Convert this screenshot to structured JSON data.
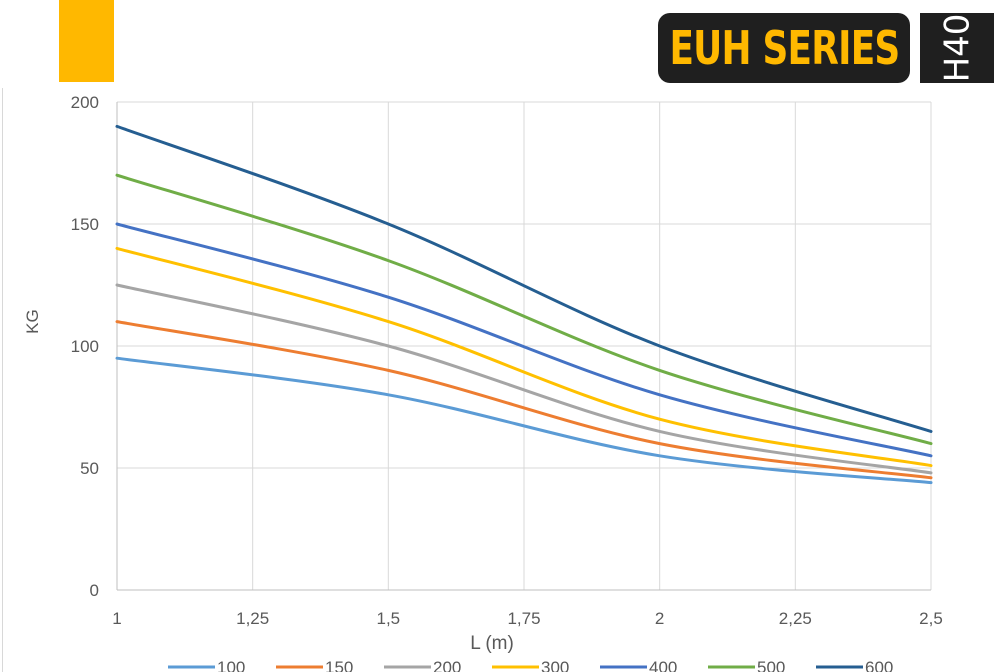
{
  "header": {
    "series_title": "EUH SERIES",
    "model": "H40",
    "colors": {
      "accent": "#FFB800",
      "badge_bg": "#1f1f1f"
    }
  },
  "chart_data": {
    "type": "line",
    "xlabel": "L (m)",
    "ylabel": "KG",
    "x": [
      1,
      1.5,
      2,
      2.5
    ],
    "x_ticks": [
      1,
      1.25,
      1.5,
      1.75,
      2,
      2.25,
      2.5
    ],
    "x_tick_labels": [
      "1",
      "1,25",
      "1,5",
      "1,75",
      "2",
      "2,25",
      "2,5"
    ],
    "xlim": [
      1,
      2.5
    ],
    "y_ticks": [
      0,
      50,
      100,
      150,
      200
    ],
    "y_tick_labels": [
      "0",
      "50",
      "100",
      "150",
      "200"
    ],
    "ylim": [
      0,
      200
    ],
    "grid": "vertical and horizontal",
    "legend_position": "bottom",
    "series": [
      {
        "name": "100",
        "color": "#5B9BD5",
        "values": [
          95,
          80,
          55,
          44
        ]
      },
      {
        "name": "150",
        "color": "#ED7D31",
        "values": [
          110,
          90,
          60,
          46
        ]
      },
      {
        "name": "200",
        "color": "#A5A5A5",
        "values": [
          125,
          100,
          65,
          48
        ]
      },
      {
        "name": "300",
        "color": "#FFC000",
        "values": [
          140,
          110,
          70,
          51
        ]
      },
      {
        "name": "400",
        "color": "#4472C4",
        "values": [
          150,
          120,
          80,
          55
        ]
      },
      {
        "name": "500",
        "color": "#70AD47",
        "values": [
          170,
          135,
          90,
          60
        ]
      },
      {
        "name": "600",
        "color": "#255E91",
        "values": [
          190,
          150,
          100,
          65
        ]
      }
    ]
  }
}
